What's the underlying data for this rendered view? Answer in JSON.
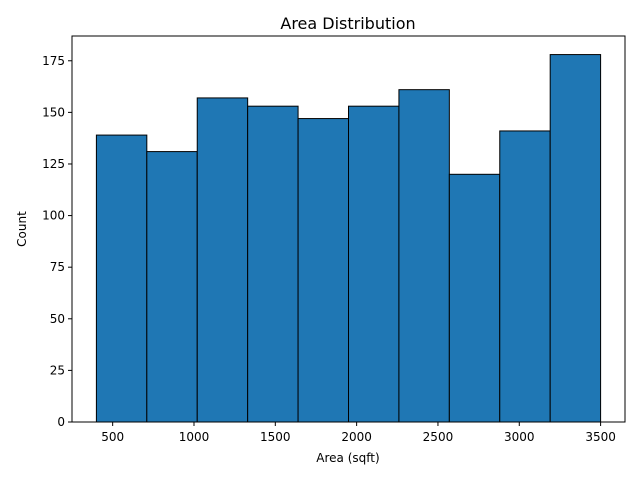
{
  "chart_data": {
    "type": "histogram",
    "title": "Area Distribution",
    "xlabel": "Area (sqft)",
    "ylabel": "Count",
    "xlim": [
      250,
      3650
    ],
    "ylim": [
      0,
      187
    ],
    "xticks": [
      500,
      1000,
      1500,
      2000,
      2500,
      3000,
      3500
    ],
    "yticks": [
      0,
      25,
      50,
      75,
      100,
      125,
      150,
      175
    ],
    "bin_edges": [
      400,
      710,
      1020,
      1330,
      1640,
      1950,
      2260,
      2570,
      2880,
      3190,
      3500
    ],
    "counts": [
      139,
      131,
      157,
      153,
      147,
      153,
      161,
      120,
      141,
      178
    ],
    "bar_color": "#1f77b4",
    "edge_color": "#000000",
    "grid": false
  }
}
